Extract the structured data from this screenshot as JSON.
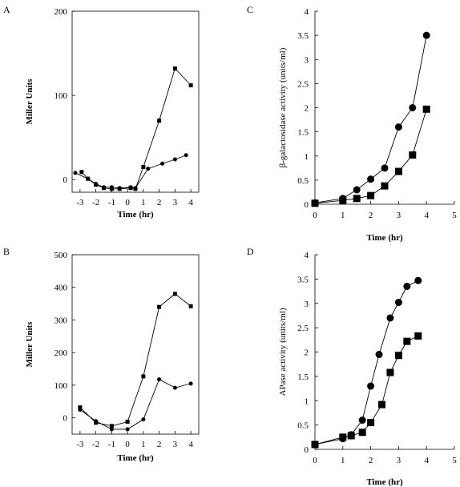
{
  "chart_data": [
    {
      "panel": "A",
      "type": "line",
      "xlabel": "Time (hr)",
      "ylabel": "Miller Units",
      "xlim": [
        -3.5,
        4.5
      ],
      "ylim": [
        -15,
        200
      ],
      "xticks": [
        -3,
        -2,
        -1,
        0,
        1,
        2,
        3,
        4
      ],
      "yticks": [
        0,
        100,
        200
      ],
      "marker_styles": [
        "square",
        "circle"
      ],
      "series": [
        {
          "x": [
            -2.9,
            -2.5,
            -2.0,
            -1.5,
            -1.0,
            -0.5,
            0.2,
            0.5,
            1.0,
            2.0,
            3.0,
            4.0
          ],
          "values": [
            9,
            1,
            -6,
            -10,
            -11,
            -11,
            -10,
            -11,
            15,
            70,
            132,
            112
          ]
        },
        {
          "x": [
            -3.3,
            -2.5,
            -2.0,
            -1.5,
            -1.0,
            -0.5,
            0.2,
            0.5,
            1.3,
            2.2,
            3.0,
            3.7
          ],
          "values": [
            8,
            1,
            -5,
            -9,
            -9,
            -10,
            -9,
            -10,
            13,
            19,
            24,
            29
          ]
        }
      ]
    },
    {
      "panel": "B",
      "type": "line",
      "xlabel": "Time (hr)",
      "ylabel": "Miller Units",
      "xlim": [
        -3.5,
        4.5
      ],
      "ylim": [
        -50,
        500
      ],
      "xticks": [
        -3,
        -2,
        -1,
        0,
        1,
        2,
        3,
        4
      ],
      "yticks": [
        0,
        100,
        200,
        300,
        400,
        500
      ],
      "marker_styles": [
        "square",
        "circle"
      ],
      "series": [
        {
          "x": [
            -3,
            -2,
            -1,
            0,
            1,
            2,
            3,
            4
          ],
          "values": [
            32,
            -15,
            -25,
            -12,
            127,
            340,
            380,
            342
          ]
        },
        {
          "x": [
            -3,
            -2,
            -1,
            0,
            1,
            2,
            3,
            4
          ],
          "values": [
            25,
            -10,
            -35,
            -35,
            -5,
            118,
            92,
            105
          ]
        }
      ]
    },
    {
      "panel": "C",
      "type": "line",
      "xlabel": "Time (hr)",
      "ylabel": "β-galactosidase activity (units/ml)",
      "xlim": [
        0,
        5
      ],
      "ylim": [
        0,
        4
      ],
      "xticks": [
        0,
        1,
        2,
        3,
        4,
        5
      ],
      "yticks": [
        0,
        0.5,
        1,
        1.5,
        2,
        2.5,
        3,
        3.5,
        4
      ],
      "marker_styles": [
        "circle",
        "square"
      ],
      "series": [
        {
          "x": [
            0,
            1,
            1.5,
            2,
            2.5,
            3,
            3.5,
            4
          ],
          "values": [
            0.03,
            0.12,
            0.3,
            0.52,
            0.75,
            1.6,
            2.0,
            3.5
          ]
        },
        {
          "x": [
            0,
            1,
            1.5,
            2,
            2.5,
            3,
            3.5,
            4
          ],
          "values": [
            0.02,
            0.08,
            0.12,
            0.18,
            0.38,
            0.68,
            1.02,
            1.97
          ]
        }
      ]
    },
    {
      "panel": "D",
      "type": "line",
      "xlabel": "Time (hr)",
      "ylabel": "APase activity (units/ml)",
      "xlim": [
        0,
        5
      ],
      "ylim": [
        0,
        4
      ],
      "xticks": [
        0,
        1,
        2,
        3,
        4,
        5
      ],
      "yticks": [
        0,
        0.5,
        1,
        1.5,
        2,
        2.5,
        3,
        3.5,
        4
      ],
      "marker_styles": [
        "circle",
        "square"
      ],
      "series": [
        {
          "x": [
            0,
            1,
            1.3,
            1.7,
            2.0,
            2.3,
            2.7,
            3.0,
            3.3,
            3.7
          ],
          "values": [
            0.1,
            0.22,
            0.3,
            0.6,
            1.3,
            1.95,
            2.7,
            3.02,
            3.35,
            3.47
          ]
        },
        {
          "x": [
            0,
            1,
            1.3,
            1.7,
            2.0,
            2.4,
            2.7,
            3.0,
            3.3,
            3.7
          ],
          "values": [
            0.1,
            0.25,
            0.28,
            0.35,
            0.55,
            0.92,
            1.58,
            1.93,
            2.22,
            2.33
          ]
        }
      ]
    }
  ]
}
